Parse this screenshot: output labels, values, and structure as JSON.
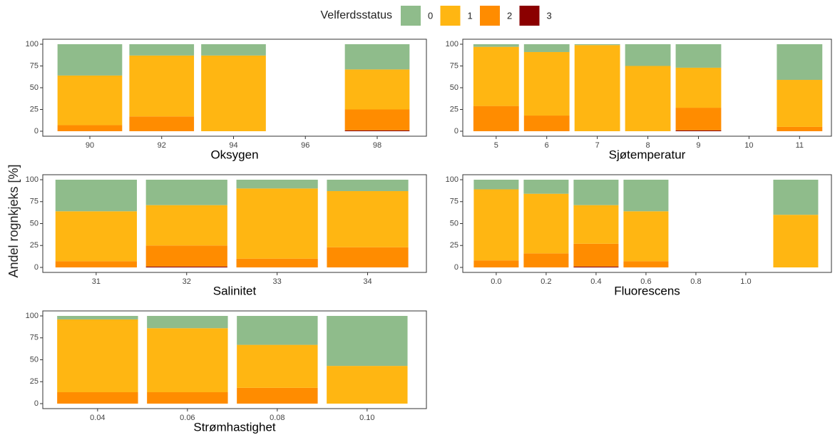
{
  "legend_title": "Velferdsstatus",
  "ylabel": "Andel rognkjeks [%]",
  "chart_data": [
    {
      "type": "bar",
      "stacked": true,
      "xlabel": "Oksygen",
      "x": [
        90,
        92,
        94,
        98
      ],
      "xlim": [
        88.69,
        99.37
      ],
      "xticks": [
        90,
        92,
        94,
        96,
        98
      ],
      "ylim": [
        0,
        100
      ],
      "yticks": [
        0,
        25,
        50,
        75,
        100
      ],
      "series": [
        {
          "name": "0",
          "color": "#8fbc8b",
          "values": [
            36,
            13,
            13,
            29
          ]
        },
        {
          "name": "1",
          "color": "#ffb612",
          "values": [
            57,
            70,
            87,
            46
          ]
        },
        {
          "name": "2",
          "color": "#ff8c00",
          "values": [
            7,
            17,
            0,
            24
          ]
        },
        {
          "name": "3",
          "color": "#8b0000",
          "values": [
            0,
            0,
            0,
            1
          ]
        }
      ]
    },
    {
      "type": "bar",
      "stacked": true,
      "xlabel": "Sjøtemperatur",
      "x": [
        5,
        6,
        7,
        8,
        9,
        11
      ],
      "xlim": [
        4.34,
        11.63
      ],
      "xticks": [
        5,
        6,
        7,
        8,
        9,
        10,
        11
      ],
      "ylim": [
        0,
        100
      ],
      "yticks": [
        0,
        25,
        50,
        75,
        100
      ],
      "series": [
        {
          "name": "0",
          "color": "#8fbc8b",
          "values": [
            3,
            9,
            1,
            25,
            27,
            41
          ]
        },
        {
          "name": "1",
          "color": "#ffb612",
          "values": [
            68,
            73,
            99,
            75,
            46,
            54
          ]
        },
        {
          "name": "2",
          "color": "#ff8c00",
          "values": [
            29,
            18,
            0,
            0,
            26,
            5
          ]
        },
        {
          "name": "3",
          "color": "#8b0000",
          "values": [
            0,
            0,
            0,
            0,
            1,
            0
          ]
        }
      ]
    },
    {
      "type": "bar",
      "stacked": true,
      "xlabel": "Salinitet",
      "x": [
        31,
        32,
        33,
        34
      ],
      "xlim": [
        30.41,
        34.65
      ],
      "xticks": [
        31,
        32,
        33,
        34
      ],
      "ylim": [
        0,
        100
      ],
      "yticks": [
        0,
        25,
        50,
        75,
        100
      ],
      "series": [
        {
          "name": "0",
          "color": "#8fbc8b",
          "values": [
            36,
            29,
            10,
            13
          ]
        },
        {
          "name": "1",
          "color": "#ffb612",
          "values": [
            57,
            46,
            80,
            64
          ]
        },
        {
          "name": "2",
          "color": "#ff8c00",
          "values": [
            7,
            24,
            10,
            23
          ]
        },
        {
          "name": "3",
          "color": "#8b0000",
          "values": [
            0,
            1,
            0,
            0
          ]
        }
      ]
    },
    {
      "type": "bar",
      "stacked": true,
      "xlabel": "Fluorescens",
      "x": [
        0,
        0.2,
        0.4,
        0.6,
        1.2
      ],
      "xlim": [
        -0.134,
        1.343
      ],
      "xticks": [
        {
          "value": 0,
          "label": "0.0"
        },
        0.2,
        0.4,
        0.6,
        0.8,
        {
          "value": 1,
          "label": "1.0"
        }
      ],
      "ylim": [
        0,
        100
      ],
      "yticks": [
        0,
        25,
        50,
        75,
        100
      ],
      "series": [
        {
          "name": "0",
          "color": "#8fbc8b",
          "values": [
            11,
            16,
            29,
            36,
            40
          ]
        },
        {
          "name": "1",
          "color": "#ffb612",
          "values": [
            81,
            68,
            44,
            57,
            60
          ]
        },
        {
          "name": "2",
          "color": "#ff8c00",
          "values": [
            8,
            16,
            26,
            7,
            0
          ]
        },
        {
          "name": "3",
          "color": "#8b0000",
          "values": [
            0,
            0,
            1,
            0,
            0
          ]
        }
      ]
    },
    {
      "type": "bar",
      "stacked": true,
      "xlabel": "Strømhastighet",
      "x": [
        0.04,
        0.06,
        0.08,
        0.1
      ],
      "xlim": [
        0.0278,
        0.1132
      ],
      "xticks": [
        0.04,
        0.06,
        0.08,
        {
          "value": 0.1,
          "label": "0.10"
        }
      ],
      "ylim": [
        0,
        100
      ],
      "yticks": [
        0,
        25,
        50,
        75,
        100
      ],
      "series": [
        {
          "name": "0",
          "color": "#8fbc8b",
          "values": [
            4,
            14,
            33,
            57
          ]
        },
        {
          "name": "1",
          "color": "#ffb612",
          "values": [
            83,
            73,
            49,
            43
          ]
        },
        {
          "name": "2",
          "color": "#ff8c00",
          "values": [
            13,
            13,
            18,
            0
          ]
        },
        {
          "name": "3",
          "color": "#8b0000",
          "values": [
            0,
            0,
            0,
            0
          ]
        }
      ]
    }
  ]
}
